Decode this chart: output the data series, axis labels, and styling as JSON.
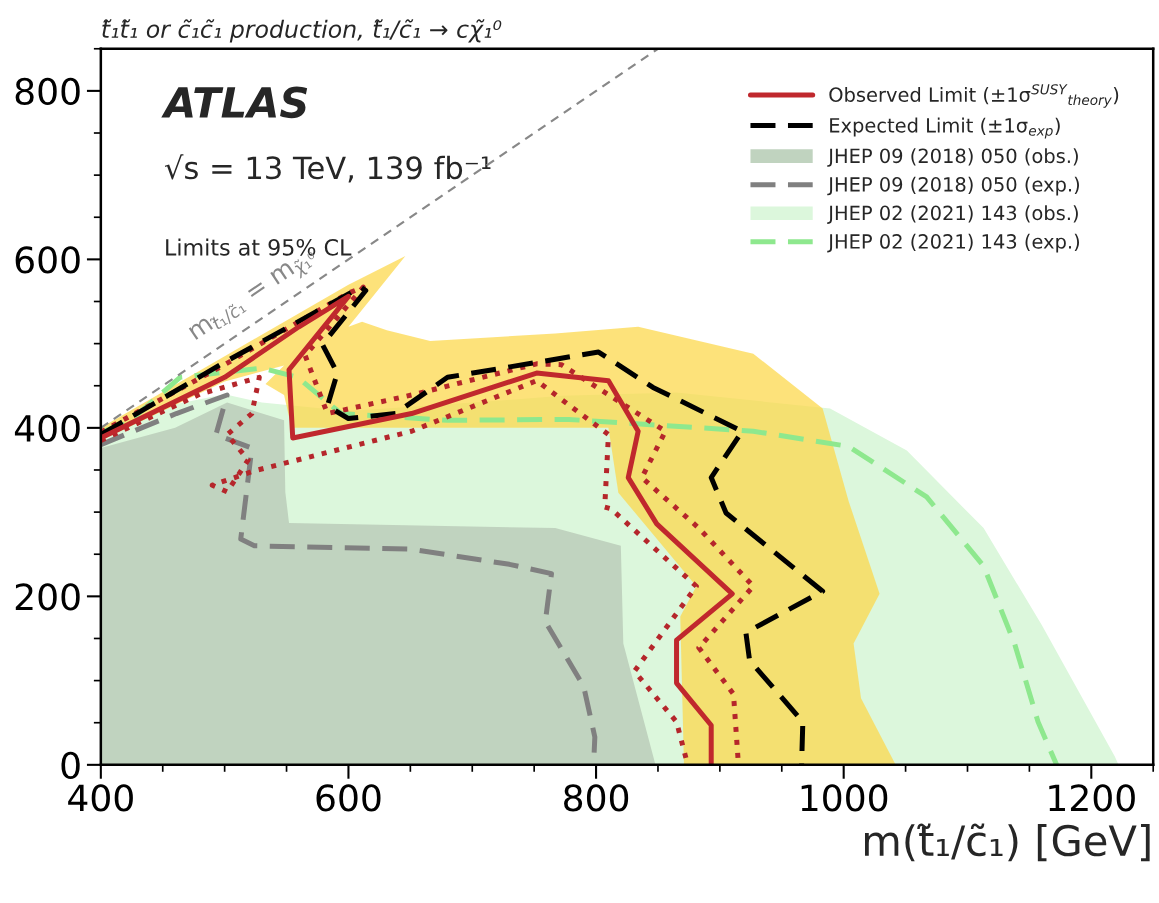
{
  "chart_data": {
    "type": "line",
    "title": "t̃₁t̃₁ or c̃₁c̃₁ production, t̃₁/c̃₁ → cχ̃₁⁰",
    "xlabel": "m(t̃₁/c̃₁) [GeV]",
    "xlim": [
      400,
      1250
    ],
    "ylim": [
      0,
      850
    ],
    "xticks": [
      400,
      600,
      800,
      1000,
      1200
    ],
    "yticks": [
      0,
      200,
      400,
      600,
      800
    ],
    "grid": false,
    "legend": "top right",
    "annotations": [
      "ATLAS",
      "√s = 13 TeV, 139 fb⁻¹",
      "Limits at 95% CL",
      "m$_{t̃₁/c̃₁}$ = m$_{χ̃₁⁰}$"
    ],
    "series": [
      {
        "type": "area",
        "name": "JHEP 02 (2021) 143 (obs.)",
        "color": "#dcf7dc",
        "x": [
          400,
          450,
          500,
          530,
          600,
          700,
          772,
          865,
          989,
          1051,
          1113,
          1160,
          1219,
          1222
        ],
        "values": [
          395,
          425,
          440,
          430,
          420,
          430,
          438,
          442,
          423,
          373,
          281,
          166,
          10,
          0
        ]
      },
      {
        "type": "area",
        "name": "JHEP 09 (2018) 050 (obs.)",
        "color": "#c0d3bf",
        "x": [
          400,
          460,
          502,
          548,
          549,
          552,
          767,
          820,
          822,
          848
        ],
        "values": [
          376,
          400,
          430,
          409,
          324,
          287,
          281,
          260,
          144,
          0
        ]
      },
      {
        "type": "area",
        "color": "#fde27a",
        "x": [
          400,
          500,
          600,
          646,
          600,
          611,
          631,
          666,
          767,
          834,
          927,
          983,
          1004,
          1029,
          1008,
          1014,
          1042,
          871,
          868,
          881,
          818,
          810,
          554,
          548,
          533,
          548,
          500,
          400
        ],
        "values": [
          400,
          485,
          570,
          604,
          520,
          526,
          516,
          503,
          512,
          520,
          488,
          423,
          313,
          203,
          144,
          79,
          0,
          0,
          176,
          212,
          323,
          400,
          400,
          439,
          452,
          474,
          455,
          385
        ]
      },
      {
        "name": "JHEP 02 (2021) 143 (exp.)",
        "color": "#8ee88e",
        "line_style": "dashed",
        "x": [
          400,
          421,
          464,
          530,
          559,
          594,
          680,
          778,
          927,
          1004,
          1067,
          1113,
          1138,
          1157,
          1172
        ],
        "values": [
          395,
          405,
          460,
          471,
          460,
          417,
          409,
          410,
          396,
          378,
          318,
          236,
          144,
          51,
          0
        ]
      },
      {
        "name": "JHEP 09 (2018) 050 (exp.)",
        "color": "#808080",
        "line_style": "dashed",
        "x": [
          400,
          461,
          502,
          493,
          522,
          513,
          524,
          651,
          730,
          764,
          759,
          790,
          799,
          798
        ],
        "values": [
          380,
          417,
          439,
          392,
          376,
          268,
          260,
          256,
          238,
          227,
          170,
          93,
          33,
          0
        ]
      },
      {
        "color": "#b5262b",
        "line_style": "dotted",
        "x": [
          400,
          500,
          600,
          612,
          565,
          583,
          651,
          752,
          772,
          856,
          837,
          883,
          927,
          883,
          911,
          915
        ],
        "values": [
          395,
          475,
          560,
          567,
          486,
          417,
          439,
          476,
          475,
          396,
          341,
          281,
          212,
          139,
          84,
          0
        ]
      },
      {
        "color": "#b5262b",
        "line_style": "dotted",
        "x": [
          400,
          480,
          528,
          522,
          502,
          519,
          502,
          490,
          524,
          651,
          752,
          810,
          807,
          812,
          881,
          831,
          865,
          874
        ],
        "values": [
          385,
          440,
          460,
          417,
          392,
          362,
          324,
          332,
          349,
          396,
          456,
          392,
          306,
          304,
          212,
          111,
          51,
          0
        ]
      },
      {
        "name": "Expected Limit (±1σ$_{exp}$)",
        "color": "#000000",
        "line_style": "dashed",
        "x": [
          400,
          500,
          610,
          614,
          579,
          591,
          583,
          600,
          638,
          680,
          802,
          846,
          918,
          893,
          905,
          983,
          921,
          924,
          967,
          966
        ],
        "values": [
          392,
          478,
          567,
          563,
          499,
          465,
          426,
          411,
          417,
          460,
          490,
          448,
          396,
          341,
          299,
          206,
          157,
          124,
          51,
          0
        ]
      },
      {
        "name": "Observed Limit (±1σ$^{SUSY}$$_{theory}$)",
        "color": "#c0282d",
        "line_style": "solid",
        "x": [
          400,
          500,
          560,
          600,
          552,
          555,
          651,
          752,
          810,
          834,
          826,
          849,
          910,
          865,
          865,
          893,
          893
        ],
        "values": [
          388,
          460,
          520,
          556,
          469,
          388,
          417,
          465,
          456,
          396,
          341,
          286,
          203,
          148,
          97,
          47,
          0
        ]
      },
      {
        "color": "#888888",
        "line_style": "dashed",
        "x": [
          400,
          850
        ],
        "values": [
          400,
          850
        ]
      }
    ]
  }
}
